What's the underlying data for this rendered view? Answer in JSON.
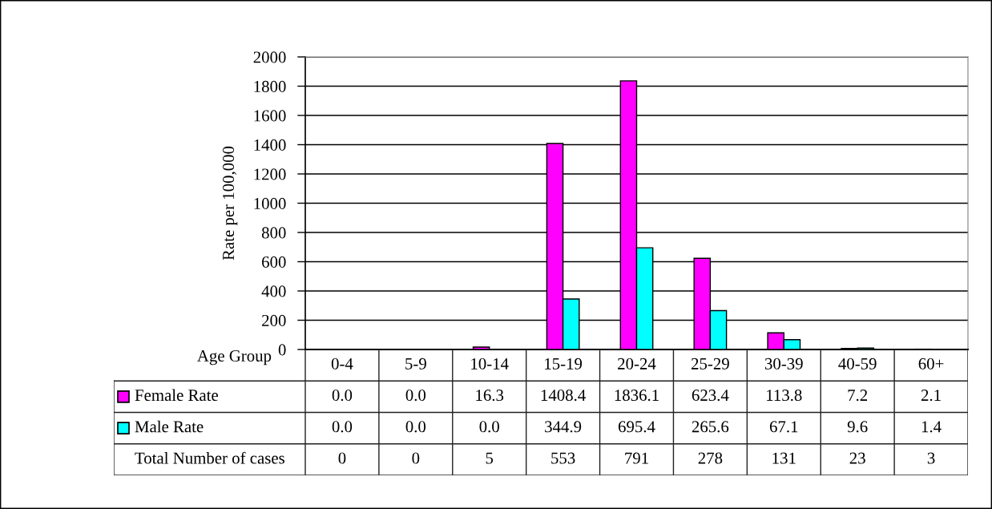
{
  "chart_data": {
    "type": "bar",
    "xlabel": "Age Group",
    "ylabel": "Rate per 100,000",
    "categories": [
      "0-4",
      "5-9",
      "10-14",
      "15-19",
      "20-24",
      "25-29",
      "30-39",
      "40-59",
      "60+"
    ],
    "series": [
      {
        "name": "Female Rate",
        "color": "#ff00ff",
        "values": [
          0.0,
          0.0,
          16.3,
          1408.4,
          1836.1,
          623.4,
          113.8,
          7.2,
          2.1
        ],
        "value_labels": [
          "0.0",
          "0.0",
          "16.3",
          "1408.4",
          "1836.1",
          "623.4",
          "113.8",
          "7.2",
          "2.1"
        ]
      },
      {
        "name": "Male Rate",
        "color": "#00ffff",
        "values": [
          0.0,
          0.0,
          0.0,
          344.9,
          695.4,
          265.6,
          67.1,
          9.6,
          1.4
        ],
        "value_labels": [
          "0.0",
          "0.0",
          "0.0",
          "344.9",
          "695.4",
          "265.6",
          "67.1",
          "9.6",
          "1.4"
        ]
      }
    ],
    "ylim": [
      0,
      2000
    ],
    "yticks": [
      0,
      200,
      400,
      600,
      800,
      1000,
      1200,
      1400,
      1600,
      1800,
      2000
    ],
    "grid": "y",
    "legend": "bottom",
    "annotations": [
      "Total Number of cases",
      "0",
      "0",
      "5",
      "553",
      "791",
      "278",
      "131",
      "23",
      "3"
    ]
  }
}
